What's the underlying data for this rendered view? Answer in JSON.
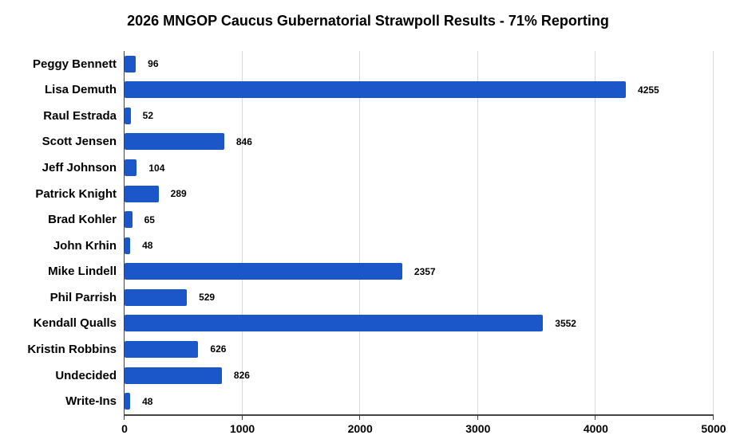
{
  "title": "2026 MNGOP Caucus Gubernatorial Strawpoll Results - 71% Reporting",
  "colors": {
    "bar": "#1b57c8",
    "gridline": "#d9d9d9",
    "axis": "#424242",
    "text": "#000000",
    "background": "#ffffff"
  },
  "chart_data": {
    "type": "bar",
    "orientation": "horizontal",
    "title": "2026 MNGOP Caucus Gubernatorial Strawpoll Results - 71% Reporting",
    "categories": [
      "Peggy Bennett",
      "Lisa Demuth",
      "Raul Estrada",
      "Scott Jensen",
      "Jeff Johnson",
      "Patrick Knight",
      "Brad Kohler",
      "John Krhin",
      "Mike Lindell",
      "Phil Parrish",
      "Kendall Qualls",
      "Kristin Robbins",
      "Undecided",
      "Write-Ins"
    ],
    "values": [
      96,
      4255,
      52,
      846,
      104,
      289,
      65,
      48,
      2357,
      529,
      3552,
      626,
      826,
      48
    ],
    "data_labels": [
      96,
      4255,
      52,
      846,
      104,
      289,
      65,
      48,
      2357,
      529,
      3552,
      626,
      826,
      48
    ],
    "xlabel": "",
    "ylabel": "",
    "xlim": [
      0,
      5000
    ],
    "xticks": [
      0,
      1000,
      2000,
      3000,
      4000,
      5000
    ],
    "grid": true,
    "legend": false,
    "bar_color": "#1b57c8"
  }
}
